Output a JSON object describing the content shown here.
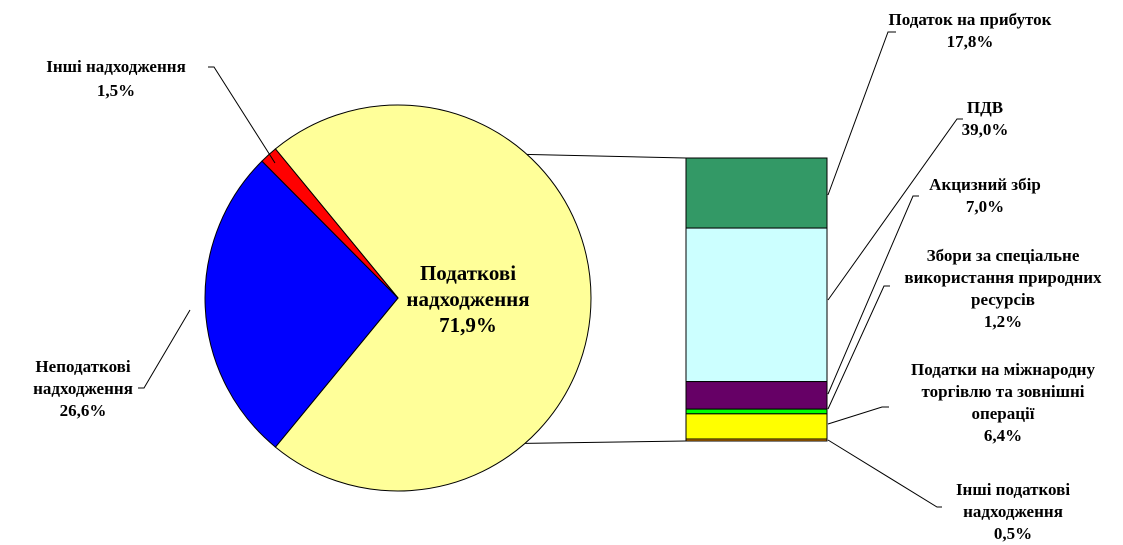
{
  "chart_data": {
    "type": "pie",
    "pie": {
      "slices": [
        {
          "label": [
            "Податкові",
            "надходження"
          ],
          "value": 71.9,
          "value_text": "71,9%",
          "color": "#FFFF99"
        },
        {
          "label": [
            "Неподаткові",
            "надходження"
          ],
          "value": 26.6,
          "value_text": "26,6%",
          "color": "#0000FF"
        },
        {
          "label": [
            "Інші надходження"
          ],
          "value": 1.5,
          "value_text": "1,5%",
          "color": "#FF0000"
        }
      ]
    },
    "breakdown": {
      "of": "Податкові надходження",
      "segments": [
        {
          "label": [
            "Податок на прибуток"
          ],
          "value": 17.8,
          "value_text": "17,8%",
          "color": "#339966"
        },
        {
          "label": [
            "ПДВ"
          ],
          "value": 39.0,
          "value_text": "39,0%",
          "color": "#CCFFFF"
        },
        {
          "label": [
            "Акцизний збір"
          ],
          "value": 7.0,
          "value_text": "7,0%",
          "color": "#660066"
        },
        {
          "label": [
            "Збори за спеціальне",
            "використання природних",
            "ресурсів"
          ],
          "value": 1.2,
          "value_text": "1,2%",
          "color": "#00FF00"
        },
        {
          "label": [
            "Податки на міжнародну",
            "торгівлю та зовнішні",
            "операції"
          ],
          "value": 6.4,
          "value_text": "6,4%",
          "color": "#FFFF00"
        },
        {
          "label": [
            "Інші податкові",
            "надходження"
          ],
          "value": 0.5,
          "value_text": "0,5%",
          "color": "#FF9900"
        }
      ]
    }
  }
}
